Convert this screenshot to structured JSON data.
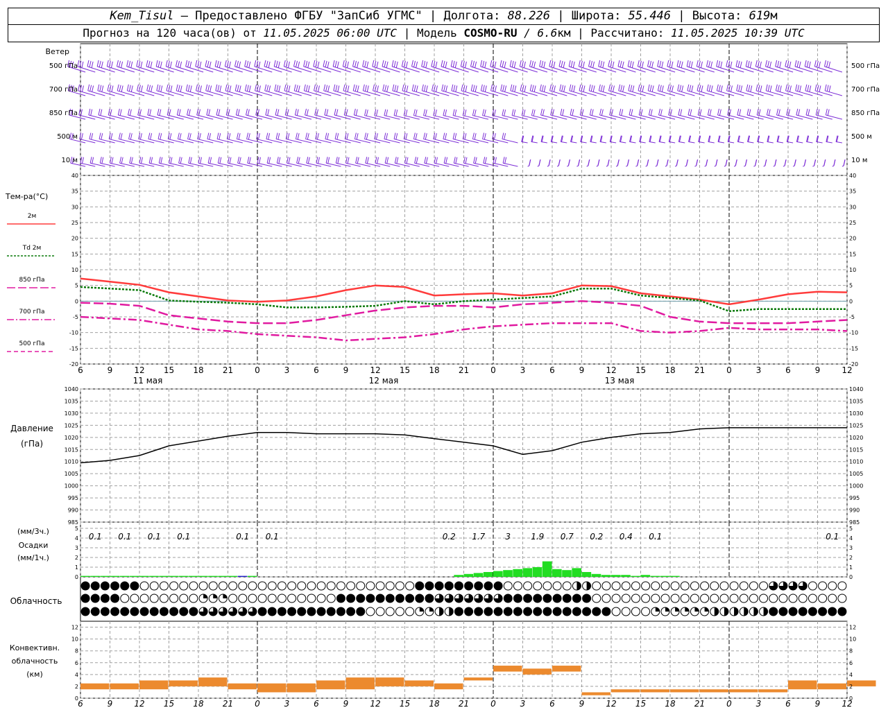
{
  "header": {
    "station": "Kem_Tisul",
    "provider": " — Предоставлено ФГБУ \"ЗапСиб УГМС\" | ",
    "lon_label": "Долгота: ",
    "lon": "88.226",
    "lat_label": " | Широта: ",
    "lat": "55.446",
    "alt_label": " | Высота: ",
    "alt": "619",
    "alt_unit": "м",
    "forecast_label": "Прогноз на 120 часа(ов) от ",
    "init_time": "11.05.2025 06:00 UTC",
    "model_label": " | Модель ",
    "model": "COSMO-RU",
    "res": " / 6.6",
    "res_unit": "км",
    "calc_label": " | Рассчитано: ",
    "calc_time": "11.05.2025 10:39 UTC"
  },
  "colors": {
    "wind": "#7b2bd6",
    "t2m": "#ff3b3b",
    "td2m": "#0a7a0a",
    "t850": "#e01aa0",
    "t700": "#e01aa0",
    "t500": "#e01aa0",
    "pressure": "#000000",
    "precip": "#22dd22",
    "precip_snow": "#2222cc",
    "convective": "#ec8a2e",
    "grid": "#a0a0a0"
  },
  "wind_panel": {
    "title": "Ветер",
    "levels": [
      "500 гПа",
      "700 гПа",
      "850 гПа",
      "500 м",
      "10 м"
    ],
    "right_levels": [
      "500 гПа",
      "700 гПа",
      "850 гПа",
      "500 м",
      "10 м"
    ]
  },
  "temp_panel": {
    "title": "Тем-ра(°C)",
    "legend": [
      {
        "label": "2м",
        "style": "solid",
        "color": "#ff3b3b"
      },
      {
        "label": "Td 2м",
        "style": "dotted",
        "color": "#0a7a0a"
      },
      {
        "label": "850 гПа",
        "style": "longdash",
        "color": "#e01aa0"
      },
      {
        "label": "700 гПа",
        "style": "dashdot",
        "color": "#e01aa0"
      },
      {
        "label": "500 гПа",
        "style": "dash",
        "color": "#e01aa0"
      }
    ],
    "y_ticks": [
      "40",
      "35",
      "30",
      "25",
      "20",
      "15",
      "10",
      "5",
      "0",
      "-5",
      "-10",
      "-15",
      "-20"
    ],
    "x_ticks": [
      "6",
      "9",
      "12",
      "15",
      "18",
      "21",
      "0",
      "3",
      "6",
      "9",
      "12",
      "15",
      "18",
      "21",
      "0",
      "3",
      "6",
      "9",
      "12",
      "15",
      "18",
      "21",
      "0",
      "3",
      "6",
      "9",
      "12"
    ],
    "dates": [
      "11 мая",
      "12 мая",
      "13 мая"
    ]
  },
  "pressure_panel": {
    "title": "Давление",
    "unit": "(гПа)",
    "y_ticks": [
      "1040",
      "1035",
      "1030",
      "1025",
      "1020",
      "1015",
      "1010",
      "1005",
      "1000",
      "995",
      "990",
      "985"
    ]
  },
  "precip_panel": {
    "title": "Осадки",
    "unit_top": "(мм/3ч.)",
    "unit_bottom": "(мм/1ч.)",
    "y_ticks": [
      "5",
      "4",
      "3",
      "2",
      "1",
      "0"
    ],
    "labels": [
      {
        "t": 1.5,
        "text": "0.1"
      },
      {
        "t": 4.5,
        "text": "0.1"
      },
      {
        "t": 7.5,
        "text": "0.1"
      },
      {
        "t": 10.5,
        "text": "0.1"
      },
      {
        "t": 16.5,
        "text": "0.1"
      },
      {
        "t": 19.5,
        "text": "0.1"
      },
      {
        "t": 37.5,
        "text": "0.2"
      },
      {
        "t": 40.5,
        "text": "1.7"
      },
      {
        "t": 43.5,
        "text": "3"
      },
      {
        "t": 46.5,
        "text": "1.9"
      },
      {
        "t": 49.5,
        "text": "0.7"
      },
      {
        "t": 52.5,
        "text": "0.2"
      },
      {
        "t": 55.5,
        "text": "0.4"
      },
      {
        "t": 58.5,
        "text": "0.1"
      },
      {
        "t": 76.5,
        "text": "0.1"
      }
    ]
  },
  "cloud_panel": {
    "title": "Облачность"
  },
  "conv_panel": {
    "title": "Конвективн.",
    "title2": "облачность",
    "unit": "(км)",
    "y_ticks": [
      "12",
      "10",
      "8",
      "6",
      "4",
      "2",
      "0"
    ]
  },
  "chart_data": {
    "type": "line",
    "x_unit": "hours since 11.05.2025 06:00 UTC",
    "x": [
      0,
      3,
      6,
      9,
      12,
      15,
      18,
      21,
      24,
      27,
      30,
      33,
      36,
      39,
      42,
      45,
      48,
      51,
      54,
      57,
      60,
      63,
      66,
      69,
      72,
      75,
      78
    ],
    "series": [
      {
        "name": "2м",
        "values": [
          7.2,
          6.2,
          5.2,
          2.8,
          1.5,
          0.2,
          -0.2,
          0.2,
          1.5,
          3.5,
          5.0,
          4.5,
          1.8,
          2.2,
          2.5,
          1.8,
          2.5,
          5.0,
          4.8,
          2.5,
          1.5,
          0.5,
          -1.0,
          0.5,
          2.2,
          3.0,
          2.8
        ]
      },
      {
        "name": "Td 2м",
        "values": [
          4.5,
          4.0,
          3.5,
          0.2,
          -0.2,
          -0.5,
          -1.0,
          -2.0,
          -2.0,
          -1.8,
          -1.5,
          0.0,
          -1.0,
          0.0,
          0.5,
          1.0,
          1.5,
          4.0,
          4.0,
          1.8,
          1.0,
          0.2,
          -3.2,
          -2.5,
          -2.5,
          -2.5,
          -2.5
        ]
      },
      {
        "name": "850 гПа",
        "values": [
          -0.5,
          -0.8,
          -1.5,
          -4.5,
          -5.5,
          -6.5,
          -7.0,
          -7.0,
          -6.0,
          -4.5,
          -3.0,
          -2.0,
          -1.5,
          -1.5,
          -2.0,
          -1.0,
          -0.5,
          0.0,
          -0.5,
          -1.5,
          -5.0,
          -6.5,
          -7.0,
          -7.0,
          -7.0,
          -6.5,
          -6.0
        ]
      },
      {
        "name": "700 гПа",
        "values": [
          -5.0,
          -5.5,
          -6.0,
          -7.5,
          -9.0,
          -9.5,
          -10.5,
          -11.0,
          -11.5,
          -12.5,
          -12.0,
          -11.5,
          -10.5,
          -9.0,
          -8.0,
          -7.5,
          -7.0,
          -7.0,
          -7.0,
          -9.5,
          -10.0,
          -9.5,
          -8.5,
          -9.0,
          -9.0,
          -9.0,
          -9.5
        ]
      },
      {
        "name": "Давление",
        "values": [
          1009.5,
          1010.5,
          1012.5,
          1016.5,
          1018.5,
          1020.5,
          1022.0,
          1022.0,
          1021.5,
          1021.5,
          1021.5,
          1021.0,
          1019.5,
          1018.0,
          1016.5,
          1013.0,
          1014.5,
          1018.0,
          1020.0,
          1021.5,
          1022.0,
          1023.5,
          1024.0,
          1024.0,
          1024.0,
          1024.0,
          1024.0
        ]
      }
    ],
    "precip_hourly": [
      0.1,
      0.1,
      0.1,
      0.1,
      0.1,
      0.1,
      0.1,
      0.1,
      0.1,
      0.1,
      0.1,
      0.1,
      0.1,
      0.1,
      0.1,
      0.1,
      0.1,
      0.1,
      0,
      0,
      0,
      0,
      0,
      0,
      0,
      0,
      0,
      0,
      0,
      0,
      0,
      0,
      0,
      0,
      0,
      0,
      0,
      0,
      0.2,
      0.3,
      0.4,
      0.5,
      0.6,
      0.7,
      0.8,
      0.9,
      1.0,
      1.6,
      0.8,
      0.7,
      0.9,
      0.5,
      0.3,
      0.2,
      0.2,
      0.2,
      0.1,
      0.2,
      0.1,
      0.1,
      0.1,
      0,
      0,
      0,
      0,
      0,
      0,
      0,
      0,
      0,
      0,
      0,
      0,
      0,
      0,
      0,
      0,
      0,
      0
    ],
    "convective_km": [
      [
        1.5,
        2.5
      ],
      [
        1.5,
        2.5
      ],
      [
        1.5,
        3.0
      ],
      [
        2.0,
        3.0
      ],
      [
        2.0,
        3.5
      ],
      [
        1.5,
        2.5
      ],
      [
        1.0,
        2.5
      ],
      [
        1.0,
        2.5
      ],
      [
        1.5,
        3.0
      ],
      [
        1.5,
        3.5
      ],
      [
        2.0,
        3.5
      ],
      [
        2.0,
        3.0
      ],
      [
        1.5,
        2.5
      ],
      [
        3.0,
        3.5
      ],
      [
        4.5,
        5.5
      ],
      [
        4.0,
        5.0
      ],
      [
        4.5,
        5.5
      ],
      [
        0.5,
        1.0
      ],
      [
        1.0,
        1.5
      ],
      [
        1.0,
        1.5
      ],
      [
        1.0,
        1.5
      ],
      [
        1.0,
        1.5
      ],
      [
        1.0,
        1.5
      ],
      [
        1.0,
        1.5
      ],
      [
        1.5,
        3.0
      ],
      [
        1.5,
        2.5
      ],
      [
        2.0,
        3.0
      ]
    ],
    "ylim_temp": [
      -20,
      40
    ],
    "ylim_pressure": [
      985,
      1040
    ],
    "ylim_precip": [
      0,
      5
    ],
    "ylim_conv": [
      0,
      13
    ]
  }
}
